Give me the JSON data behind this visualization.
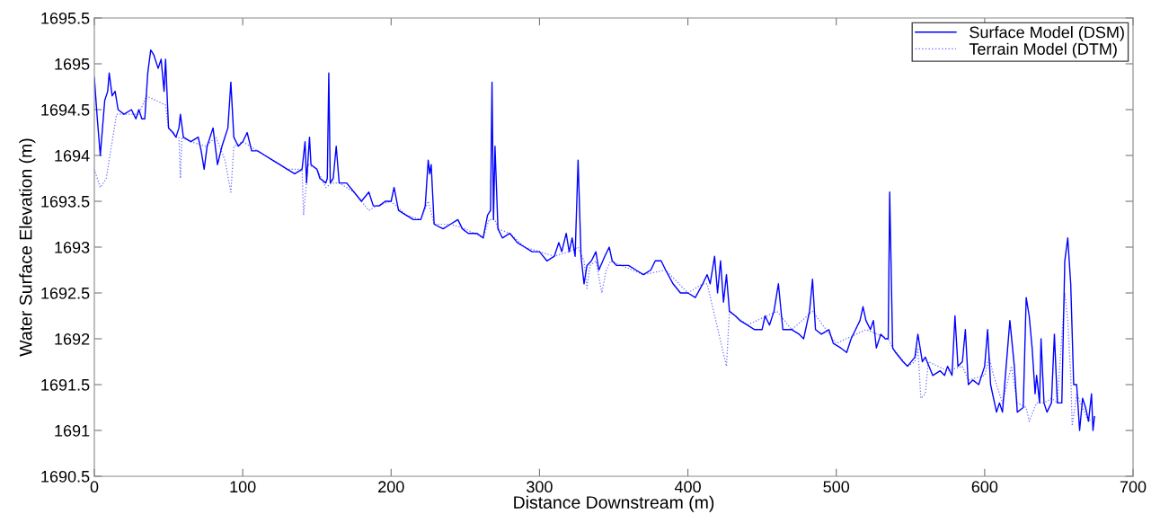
{
  "chart_data": {
    "type": "line",
    "xlabel": "Distance Downstream (m)",
    "ylabel": "Water Surface Elevation (m)",
    "xlim": [
      0,
      700
    ],
    "xticks": [
      0,
      100,
      200,
      300,
      400,
      500,
      600,
      700
    ],
    "ylim": [
      1690.5,
      1695.5
    ],
    "yticks": [
      1690.5,
      1691,
      1691.5,
      1692,
      1692.5,
      1693,
      1693.5,
      1694,
      1694.5,
      1695,
      1695.5
    ],
    "grid": false,
    "legend": "top right",
    "series": [
      {
        "name": "Surface Model (DSM)",
        "color": "#0000ff",
        "line_style": "solid",
        "x": [
          0,
          2,
          4,
          5,
          7,
          9,
          10,
          12,
          14,
          16,
          20,
          25,
          28,
          30,
          32,
          34,
          36,
          38,
          40,
          43,
          45,
          47,
          48,
          50,
          53,
          55,
          57,
          58,
          60,
          65,
          70,
          72,
          74,
          76,
          80,
          83,
          86,
          90,
          92,
          94,
          97,
          100,
          103,
          106,
          110,
          115,
          120,
          125,
          130,
          135,
          140,
          142,
          143,
          145,
          146,
          150,
          152,
          156,
          157,
          158,
          159,
          161,
          163,
          165,
          170,
          175,
          180,
          185,
          188,
          192,
          196,
          200,
          202,
          205,
          210,
          215,
          220,
          223,
          225,
          226,
          227,
          229,
          235,
          240,
          245,
          248,
          252,
          258,
          262,
          265,
          267,
          268,
          269,
          270,
          272,
          275,
          280,
          285,
          290,
          295,
          300,
          305,
          310,
          313,
          315,
          318,
          320,
          322,
          324,
          326,
          328,
          330,
          332,
          335,
          338,
          340,
          344,
          347,
          349,
          352,
          355,
          360,
          365,
          370,
          375,
          378,
          382,
          385,
          390,
          395,
          400,
          405,
          410,
          413,
          415,
          418,
          420,
          422,
          424,
          426,
          428,
          432,
          435,
          440,
          445,
          450,
          452,
          455,
          458,
          461,
          464,
          470,
          475,
          478,
          482,
          484,
          486,
          490,
          495,
          498,
          503,
          507,
          510,
          513,
          516,
          518,
          520,
          523,
          525,
          527,
          530,
          533,
          535,
          536,
          538,
          540,
          545,
          548,
          553,
          555,
          558,
          560,
          565,
          570,
          573,
          575,
          578,
          580,
          582,
          585,
          587,
          589,
          592,
          596,
          600,
          602,
          604,
          608,
          610,
          612,
          615,
          617,
          620,
          622,
          626,
          628,
          630,
          632,
          634,
          635,
          637,
          638,
          640,
          642,
          645,
          647,
          649,
          652,
          654,
          656,
          658,
          660,
          662,
          664,
          666,
          668,
          670,
          672,
          673,
          674
        ],
        "values": [
          1694.85,
          1694.4,
          1694.0,
          1694.2,
          1694.6,
          1694.7,
          1694.9,
          1694.65,
          1694.7,
          1694.5,
          1694.45,
          1694.5,
          1694.4,
          1694.5,
          1694.4,
          1694.4,
          1694.9,
          1695.15,
          1695.1,
          1694.95,
          1695.05,
          1694.7,
          1695.05,
          1694.3,
          1694.25,
          1694.2,
          1694.3,
          1694.45,
          1694.2,
          1694.15,
          1694.2,
          1694.05,
          1693.85,
          1694.1,
          1694.3,
          1693.9,
          1694.1,
          1694.3,
          1694.8,
          1694.2,
          1694.1,
          1694.15,
          1694.25,
          1694.05,
          1694.05,
          1694.0,
          1693.95,
          1693.9,
          1693.85,
          1693.8,
          1693.85,
          1694.15,
          1693.7,
          1694.2,
          1693.9,
          1693.85,
          1693.75,
          1693.7,
          1693.75,
          1694.9,
          1693.7,
          1693.75,
          1694.1,
          1693.7,
          1693.7,
          1693.6,
          1693.5,
          1693.6,
          1693.45,
          1693.45,
          1693.5,
          1693.5,
          1693.65,
          1693.4,
          1693.35,
          1693.3,
          1693.3,
          1693.45,
          1693.95,
          1693.8,
          1693.9,
          1693.25,
          1693.2,
          1693.25,
          1693.3,
          1693.2,
          1693.15,
          1693.15,
          1693.1,
          1693.35,
          1693.4,
          1694.8,
          1693.3,
          1694.1,
          1693.2,
          1693.1,
          1693.15,
          1693.05,
          1693.0,
          1692.95,
          1692.95,
          1692.85,
          1692.9,
          1693.05,
          1692.95,
          1693.15,
          1692.95,
          1693.1,
          1692.9,
          1693.95,
          1692.9,
          1692.6,
          1692.8,
          1692.85,
          1692.95,
          1692.75,
          1692.9,
          1693.0,
          1692.85,
          1692.8,
          1692.8,
          1692.8,
          1692.75,
          1692.7,
          1692.75,
          1692.85,
          1692.85,
          1692.75,
          1692.6,
          1692.5,
          1692.5,
          1692.45,
          1692.6,
          1692.7,
          1692.6,
          1692.9,
          1692.5,
          1692.85,
          1692.4,
          1692.7,
          1692.3,
          1692.25,
          1692.2,
          1692.15,
          1692.1,
          1692.1,
          1692.25,
          1692.15,
          1692.3,
          1692.6,
          1692.1,
          1692.1,
          1692.05,
          1692.0,
          1692.3,
          1692.65,
          1692.1,
          1692.05,
          1692.1,
          1691.95,
          1691.9,
          1691.85,
          1692.0,
          1692.1,
          1692.2,
          1692.35,
          1692.2,
          1692.1,
          1692.2,
          1691.9,
          1692.05,
          1692.0,
          1692.0,
          1693.6,
          1691.9,
          1691.85,
          1691.75,
          1691.7,
          1691.8,
          1692.05,
          1691.75,
          1691.8,
          1691.6,
          1691.65,
          1691.6,
          1691.7,
          1691.6,
          1692.25,
          1691.7,
          1691.75,
          1692.1,
          1691.5,
          1691.55,
          1691.5,
          1691.7,
          1692.1,
          1691.5,
          1691.2,
          1691.3,
          1691.2,
          1691.8,
          1692.2,
          1691.7,
          1691.2,
          1691.25,
          1692.45,
          1692.25,
          1691.9,
          1691.4,
          1691.6,
          1691.3,
          1692.0,
          1691.3,
          1691.2,
          1691.3,
          1692.05,
          1691.3,
          1691.3,
          1692.85,
          1693.1,
          1692.6,
          1691.5,
          1691.5,
          1691.0,
          1691.35,
          1691.25,
          1691.1,
          1691.4,
          1691.0,
          1691.15
        ]
      },
      {
        "name": "Terrain Model (DTM)",
        "color": "#6a6aff",
        "line_style": "dotted",
        "x": [
          0,
          4,
          8,
          15,
          20,
          30,
          35,
          48,
          50,
          55,
          57,
          58,
          59,
          65,
          75,
          82,
          88,
          92,
          94,
          100,
          110,
          120,
          130,
          140,
          141,
          144,
          150,
          156,
          160,
          165,
          175,
          185,
          190,
          200,
          210,
          220,
          225,
          229,
          240,
          250,
          262,
          266,
          268,
          270,
          272,
          280,
          290,
          300,
          310,
          320,
          326,
          330,
          332,
          334,
          338,
          342,
          345,
          348,
          355,
          370,
          385,
          400,
          410,
          413,
          426,
          428,
          440,
          460,
          470,
          484,
          500,
          520,
          535,
          538,
          548,
          553,
          555,
          557,
          560,
          562,
          575,
          585,
          589,
          600,
          603,
          606,
          612,
          618,
          622,
          628,
          630,
          635,
          640,
          645,
          649,
          654,
          656,
          658,
          659,
          662,
          670,
          674
        ],
        "values": [
          1693.85,
          1693.65,
          1693.75,
          1694.45,
          1694.45,
          1694.45,
          1694.65,
          1694.55,
          1694.3,
          1694.2,
          1694.2,
          1693.75,
          1694.2,
          1694.15,
          1694.1,
          1694.2,
          1693.95,
          1693.6,
          1694.1,
          1694.15,
          1694.05,
          1693.95,
          1693.85,
          1693.85,
          1693.35,
          1693.9,
          1693.85,
          1693.65,
          1693.7,
          1693.7,
          1693.6,
          1693.4,
          1693.45,
          1693.5,
          1693.35,
          1693.3,
          1693.5,
          1693.25,
          1693.25,
          1693.2,
          1693.1,
          1693.3,
          1693.3,
          1693.3,
          1693.2,
          1693.15,
          1693.0,
          1692.95,
          1692.9,
          1692.95,
          1693.0,
          1692.85,
          1692.55,
          1692.8,
          1692.85,
          1692.5,
          1692.75,
          1692.85,
          1692.8,
          1692.7,
          1692.75,
          1692.5,
          1692.6,
          1692.6,
          1691.7,
          1692.3,
          1692.15,
          1692.3,
          1692.1,
          1692.3,
          1691.95,
          1692.1,
          1692.0,
          1691.9,
          1691.7,
          1691.75,
          1691.9,
          1691.35,
          1691.4,
          1691.75,
          1691.65,
          1691.7,
          1691.55,
          1691.6,
          1691.8,
          1691.6,
          1691.3,
          1691.7,
          1691.3,
          1691.25,
          1691.1,
          1691.3,
          1691.3,
          1691.35,
          1691.3,
          1692.5,
          1692.2,
          1691.6,
          1691.05,
          1691.4,
          1691.1,
          1691.15
        ]
      }
    ]
  }
}
